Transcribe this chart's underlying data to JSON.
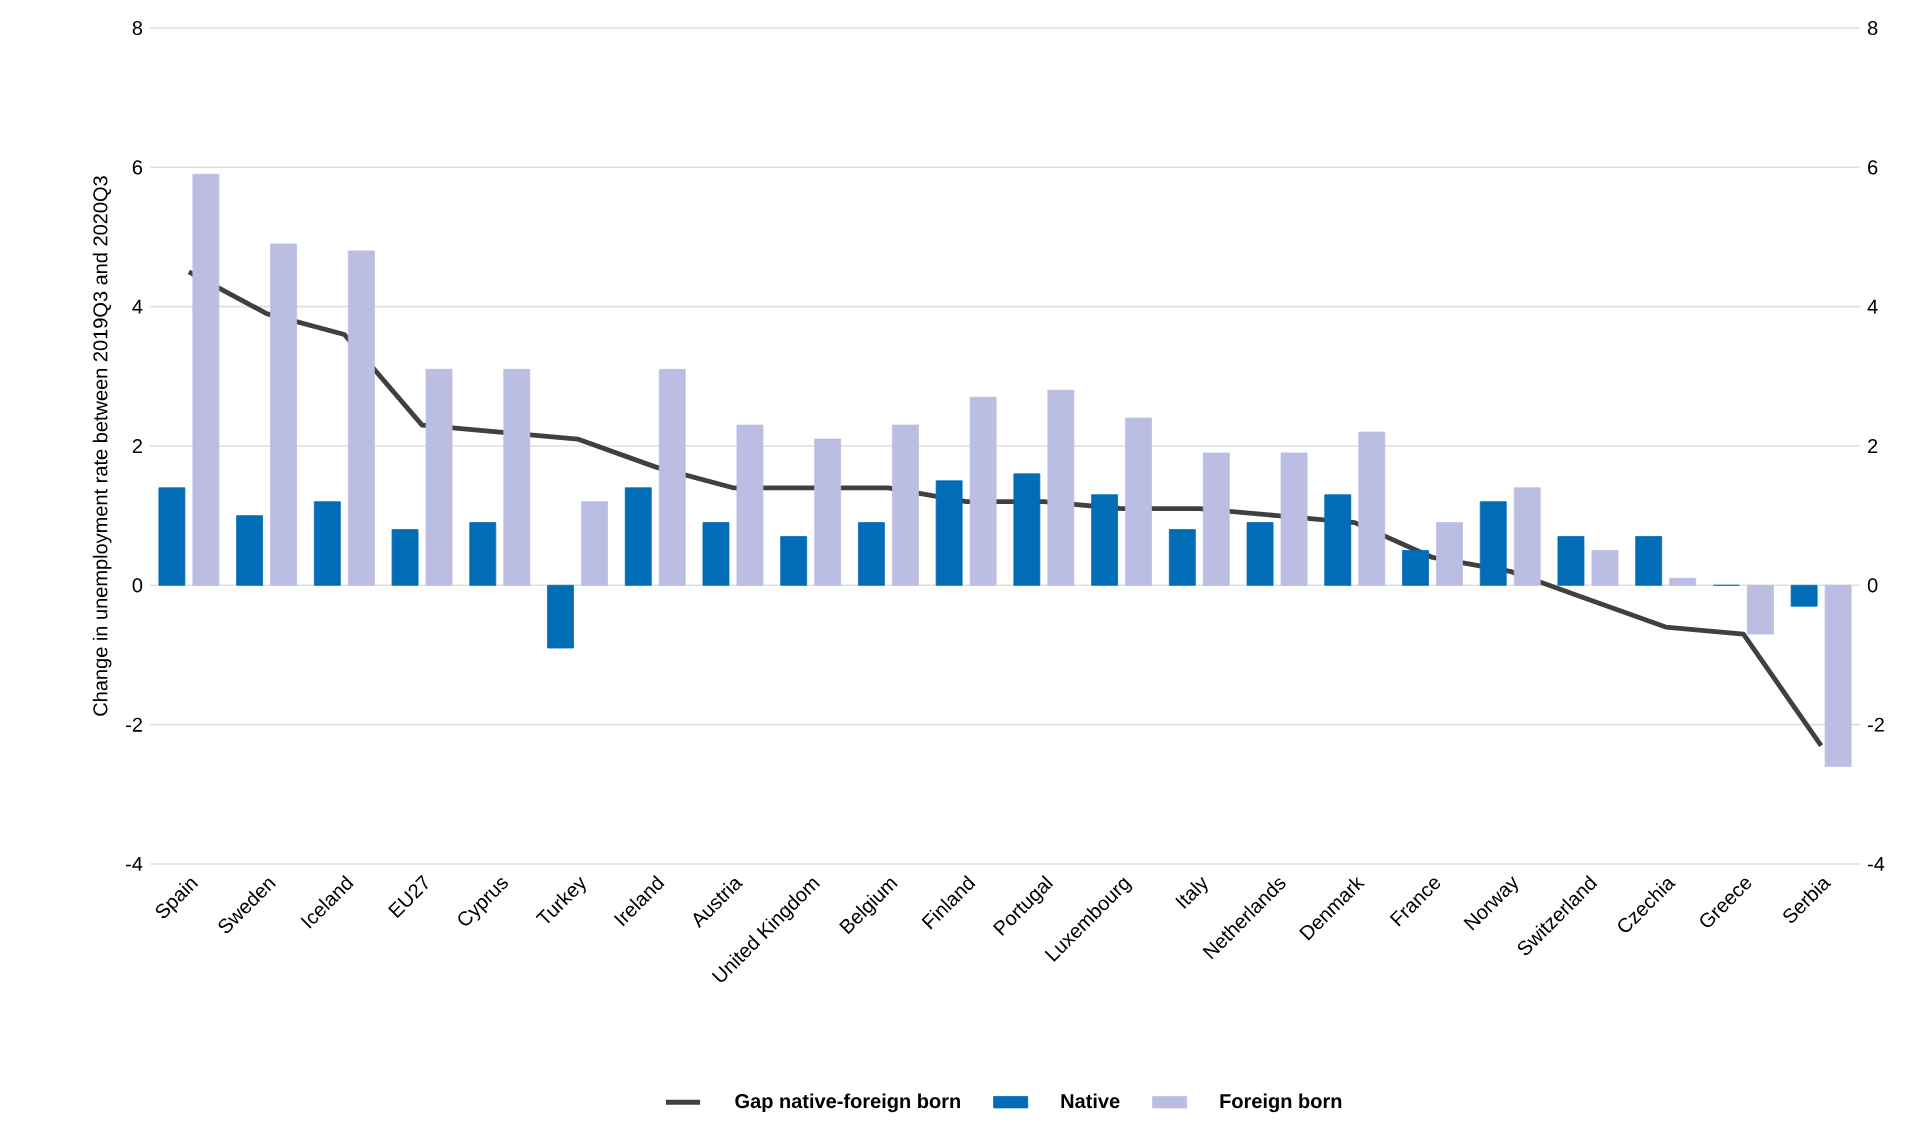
{
  "chart_data": {
    "type": "bar",
    "ylabel": "Change in unemployment rate between 2019Q3 and 2020Q3",
    "categories": [
      "Spain",
      "Sweden",
      "Iceland",
      "EU27",
      "Cyprus",
      "Turkey",
      "Ireland",
      "Austria",
      "United Kingdom",
      "Belgium",
      "Finland",
      "Portugal",
      "Luxembourg",
      "Italy",
      "Netherlands",
      "Denmark",
      "France",
      "Norway",
      "Switzerland",
      "Czechia",
      "Greece",
      "Serbia"
    ],
    "series": [
      {
        "name": "Gap native-foreign born",
        "type": "line",
        "color": "#404040",
        "values": [
          4.5,
          3.9,
          3.6,
          2.3,
          2.2,
          2.1,
          1.7,
          1.4,
          1.4,
          1.4,
          1.2,
          1.2,
          1.1,
          1.1,
          1.0,
          0.9,
          0.4,
          0.2,
          -0.2,
          -0.6,
          -0.7,
          -2.3
        ]
      },
      {
        "name": "Native",
        "color": "#006db6",
        "values": [
          1.4,
          1.0,
          1.2,
          0.8,
          0.9,
          -0.9,
          1.4,
          0.9,
          0.7,
          0.9,
          1.5,
          1.6,
          1.3,
          0.8,
          0.9,
          1.3,
          0.5,
          1.2,
          0.7,
          0.7,
          0,
          -0.3
        ]
      },
      {
        "name": "Foreign born",
        "color": "#bcbde3",
        "values": [
          5.9,
          4.9,
          4.8,
          3.1,
          3.1,
          1.2,
          3.1,
          2.3,
          2.1,
          2.3,
          2.7,
          2.8,
          2.4,
          1.9,
          1.9,
          2.2,
          0.9,
          1.4,
          0.5,
          0.1,
          -0.7,
          -2.6
        ]
      }
    ],
    "ylim": [
      -4,
      8
    ],
    "yticks": [
      -4,
      -2,
      0,
      2,
      4,
      6,
      8
    ],
    "y2lim": [
      -4,
      8
    ],
    "y2ticks": [
      -4,
      -2,
      0,
      2,
      4,
      6,
      8
    ],
    "grid": "y",
    "legend": "bottom"
  }
}
